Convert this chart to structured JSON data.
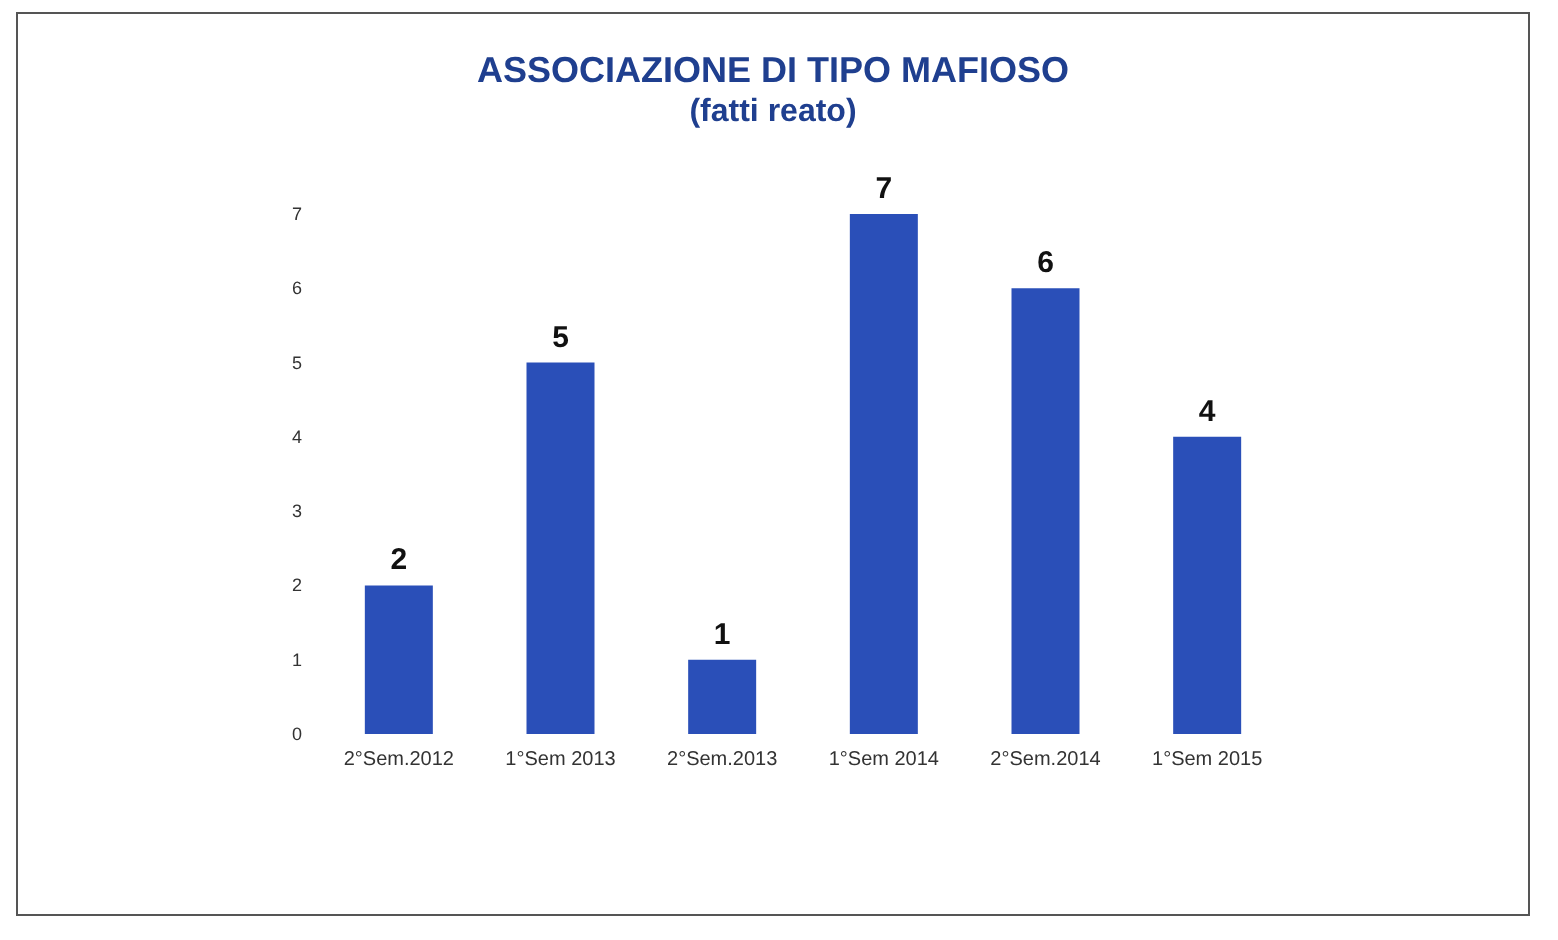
{
  "chart_data": {
    "type": "bar",
    "title": "ASSOCIAZIONE DI TIPO MAFIOSO",
    "subtitle": "(fatti reato)",
    "categories": [
      "2°Sem.2012",
      "1°Sem 2013",
      "2°Sem.2013",
      "1°Sem 2014",
      "2°Sem.2014",
      "1°Sem 2015"
    ],
    "values": [
      2,
      5,
      1,
      7,
      6,
      4
    ],
    "color": "#2a4fb8",
    "ylim": [
      0,
      7
    ],
    "yticks": [
      0,
      1,
      2,
      3,
      4,
      5,
      6,
      7
    ],
    "data_labels": true
  }
}
